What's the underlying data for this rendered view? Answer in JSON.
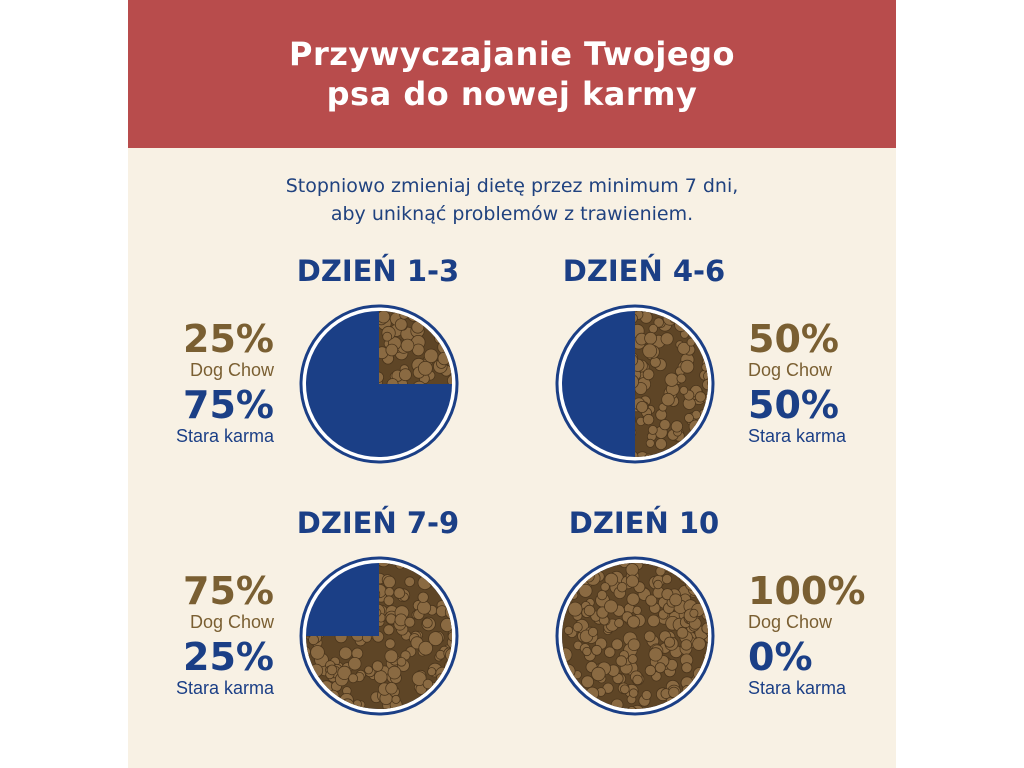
{
  "header": {
    "title_line1": "Przywyczajanie Twojego",
    "title_line2": "psa do nowej karmy"
  },
  "subtitle": {
    "line1": "Stopniowo zmieniaj dietę przez minimum 7 dni,",
    "line2": "aby uniknąć problemów z trawieniem."
  },
  "colors": {
    "header_bg": "#b84c4c",
    "panel_bg": "#f8f1e4",
    "navy": "#1b3f86",
    "brown": "#7a5f32",
    "kibble": "#8a6a42"
  },
  "chart_data": {
    "type": "pie",
    "series_names": [
      "Dog Chow",
      "Stara karma"
    ],
    "stages": [
      {
        "day": "DZIEŃ 1-3",
        "new_label": "25%",
        "new_name": "Dog Chow",
        "old_label": "75%",
        "old_name": "Stara karma",
        "new_fraction": 0.25
      },
      {
        "day": "DZIEŃ 4-6",
        "new_label": "50%",
        "new_name": "Dog Chow",
        "old_label": "50%",
        "old_name": "Stara karma",
        "new_fraction": 0.5
      },
      {
        "day": "DZIEŃ 7-9",
        "new_label": "75%",
        "new_name": "Dog Chow",
        "old_label": "25%",
        "old_name": "Stara karma",
        "new_fraction": 0.75
      },
      {
        "day": "DZIEŃ 10",
        "new_label": "100%",
        "new_name": "Dog Chow",
        "old_label": "0%",
        "old_name": "Stara karma",
        "new_fraction": 1.0
      }
    ]
  }
}
